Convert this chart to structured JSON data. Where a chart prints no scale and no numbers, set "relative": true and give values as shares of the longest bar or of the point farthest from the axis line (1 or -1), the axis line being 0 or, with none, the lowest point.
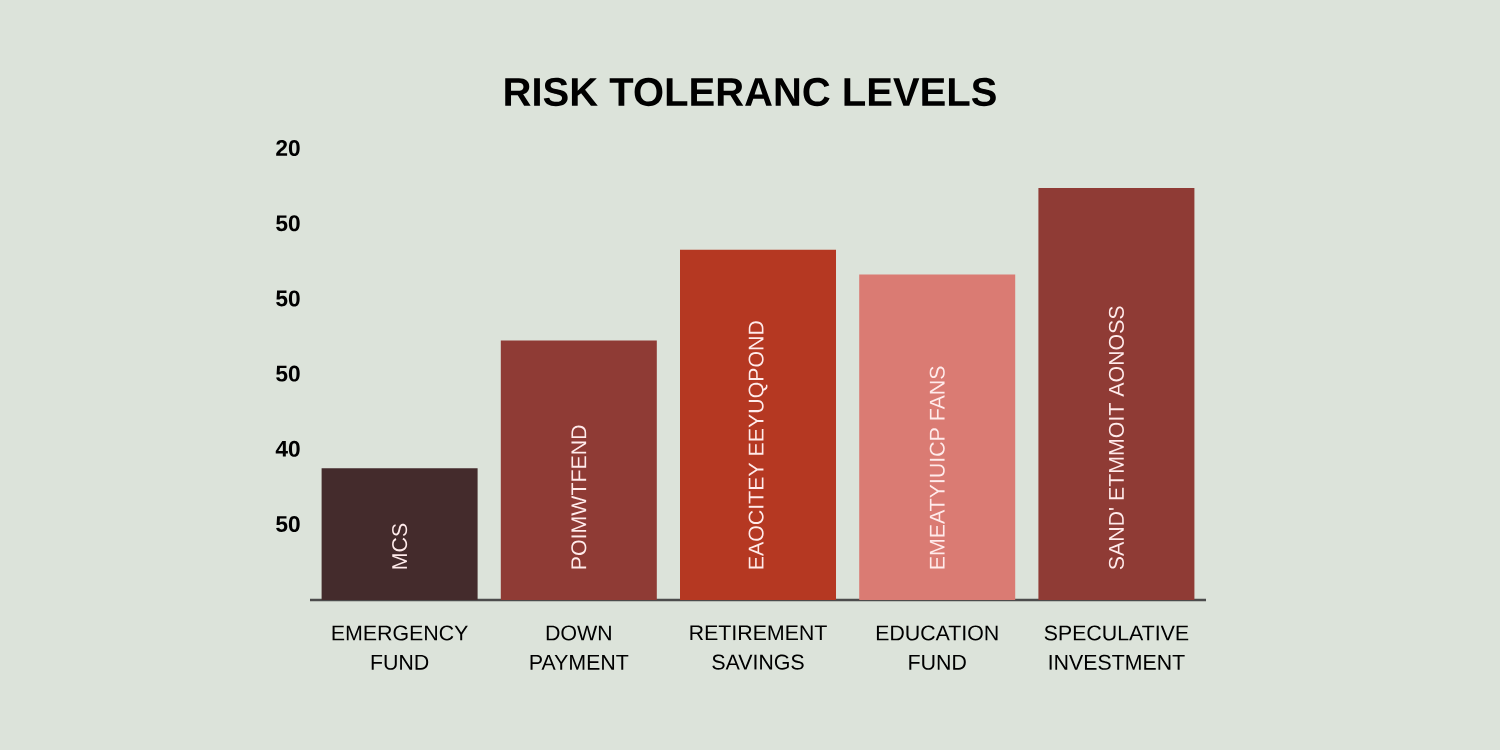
{
  "chart_data": {
    "type": "bar",
    "title": "RISK TOLERANC LEVELS",
    "categories": [
      "EMERGENCY FUND",
      "DOWN PAYMENT",
      "RETIREMENT SAVINGS",
      "EDUCATION FUND",
      "SPECULATIVE INVESTMENT"
    ],
    "values": [
      0.32,
      0.63,
      0.85,
      0.79,
      1
    ],
    "relative": true,
    "colors": [
      "#442b2c",
      "#8f3b35",
      "#b53822",
      "#da7b73",
      "#8f3b35"
    ],
    "annotations": [
      "MCS",
      "POIMWTFEND",
      "EAOCITEY EEYUQPOND",
      "EMEATYIUICP FANS",
      "SAND' ETMMOIT AONOSS",
      "20",
      "50",
      "50",
      "50",
      "40",
      "50"
    ]
  }
}
